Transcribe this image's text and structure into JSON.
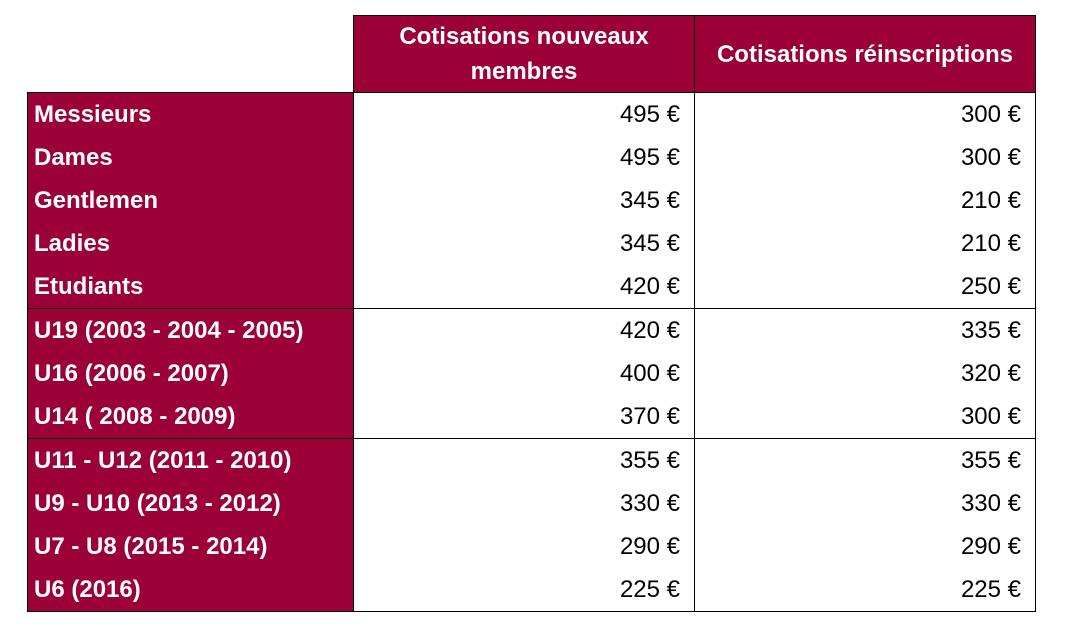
{
  "table": {
    "headers": {
      "new_members": "Cotisations nouveaux membres",
      "renewals": "Cotisations réinscriptions"
    },
    "rows": [
      {
        "label": "Messieurs",
        "new": "495 €",
        "renew": "300 €"
      },
      {
        "label": "Dames",
        "new": "495 €",
        "renew": "300 €"
      },
      {
        "label": "Gentlemen",
        "new": "345 €",
        "renew": "210 €"
      },
      {
        "label": "Ladies",
        "new": "345 €",
        "renew": "210 €"
      },
      {
        "label": "Etudiants",
        "new": "420 €",
        "renew": "250 €"
      },
      {
        "label": "U19 (2003 - 2004 - 2005)",
        "new": "420 €",
        "renew": "335 €"
      },
      {
        "label": "U16 (2006 - 2007)",
        "new": "400 €",
        "renew": "320 €"
      },
      {
        "label": "U14 ( 2008 - 2009)",
        "new": "370 €",
        "renew": "300 €"
      },
      {
        "label": "U11 - U12 (2011 - 2010)",
        "new": "355 €",
        "renew": "355 €"
      },
      {
        "label": "U9 - U10 (2013 - 2012)",
        "new": "330 €",
        "renew": "330 €"
      },
      {
        "label": "U7 - U8 (2015 - 2014)",
        "new": "290 €",
        "renew": "290 €"
      },
      {
        "label": "U6 (2016)",
        "new": "225 €",
        "renew": "225 €"
      }
    ]
  },
  "colors": {
    "header_bg": "#9b0036",
    "header_text": "#ffffff",
    "border": "#000000"
  }
}
